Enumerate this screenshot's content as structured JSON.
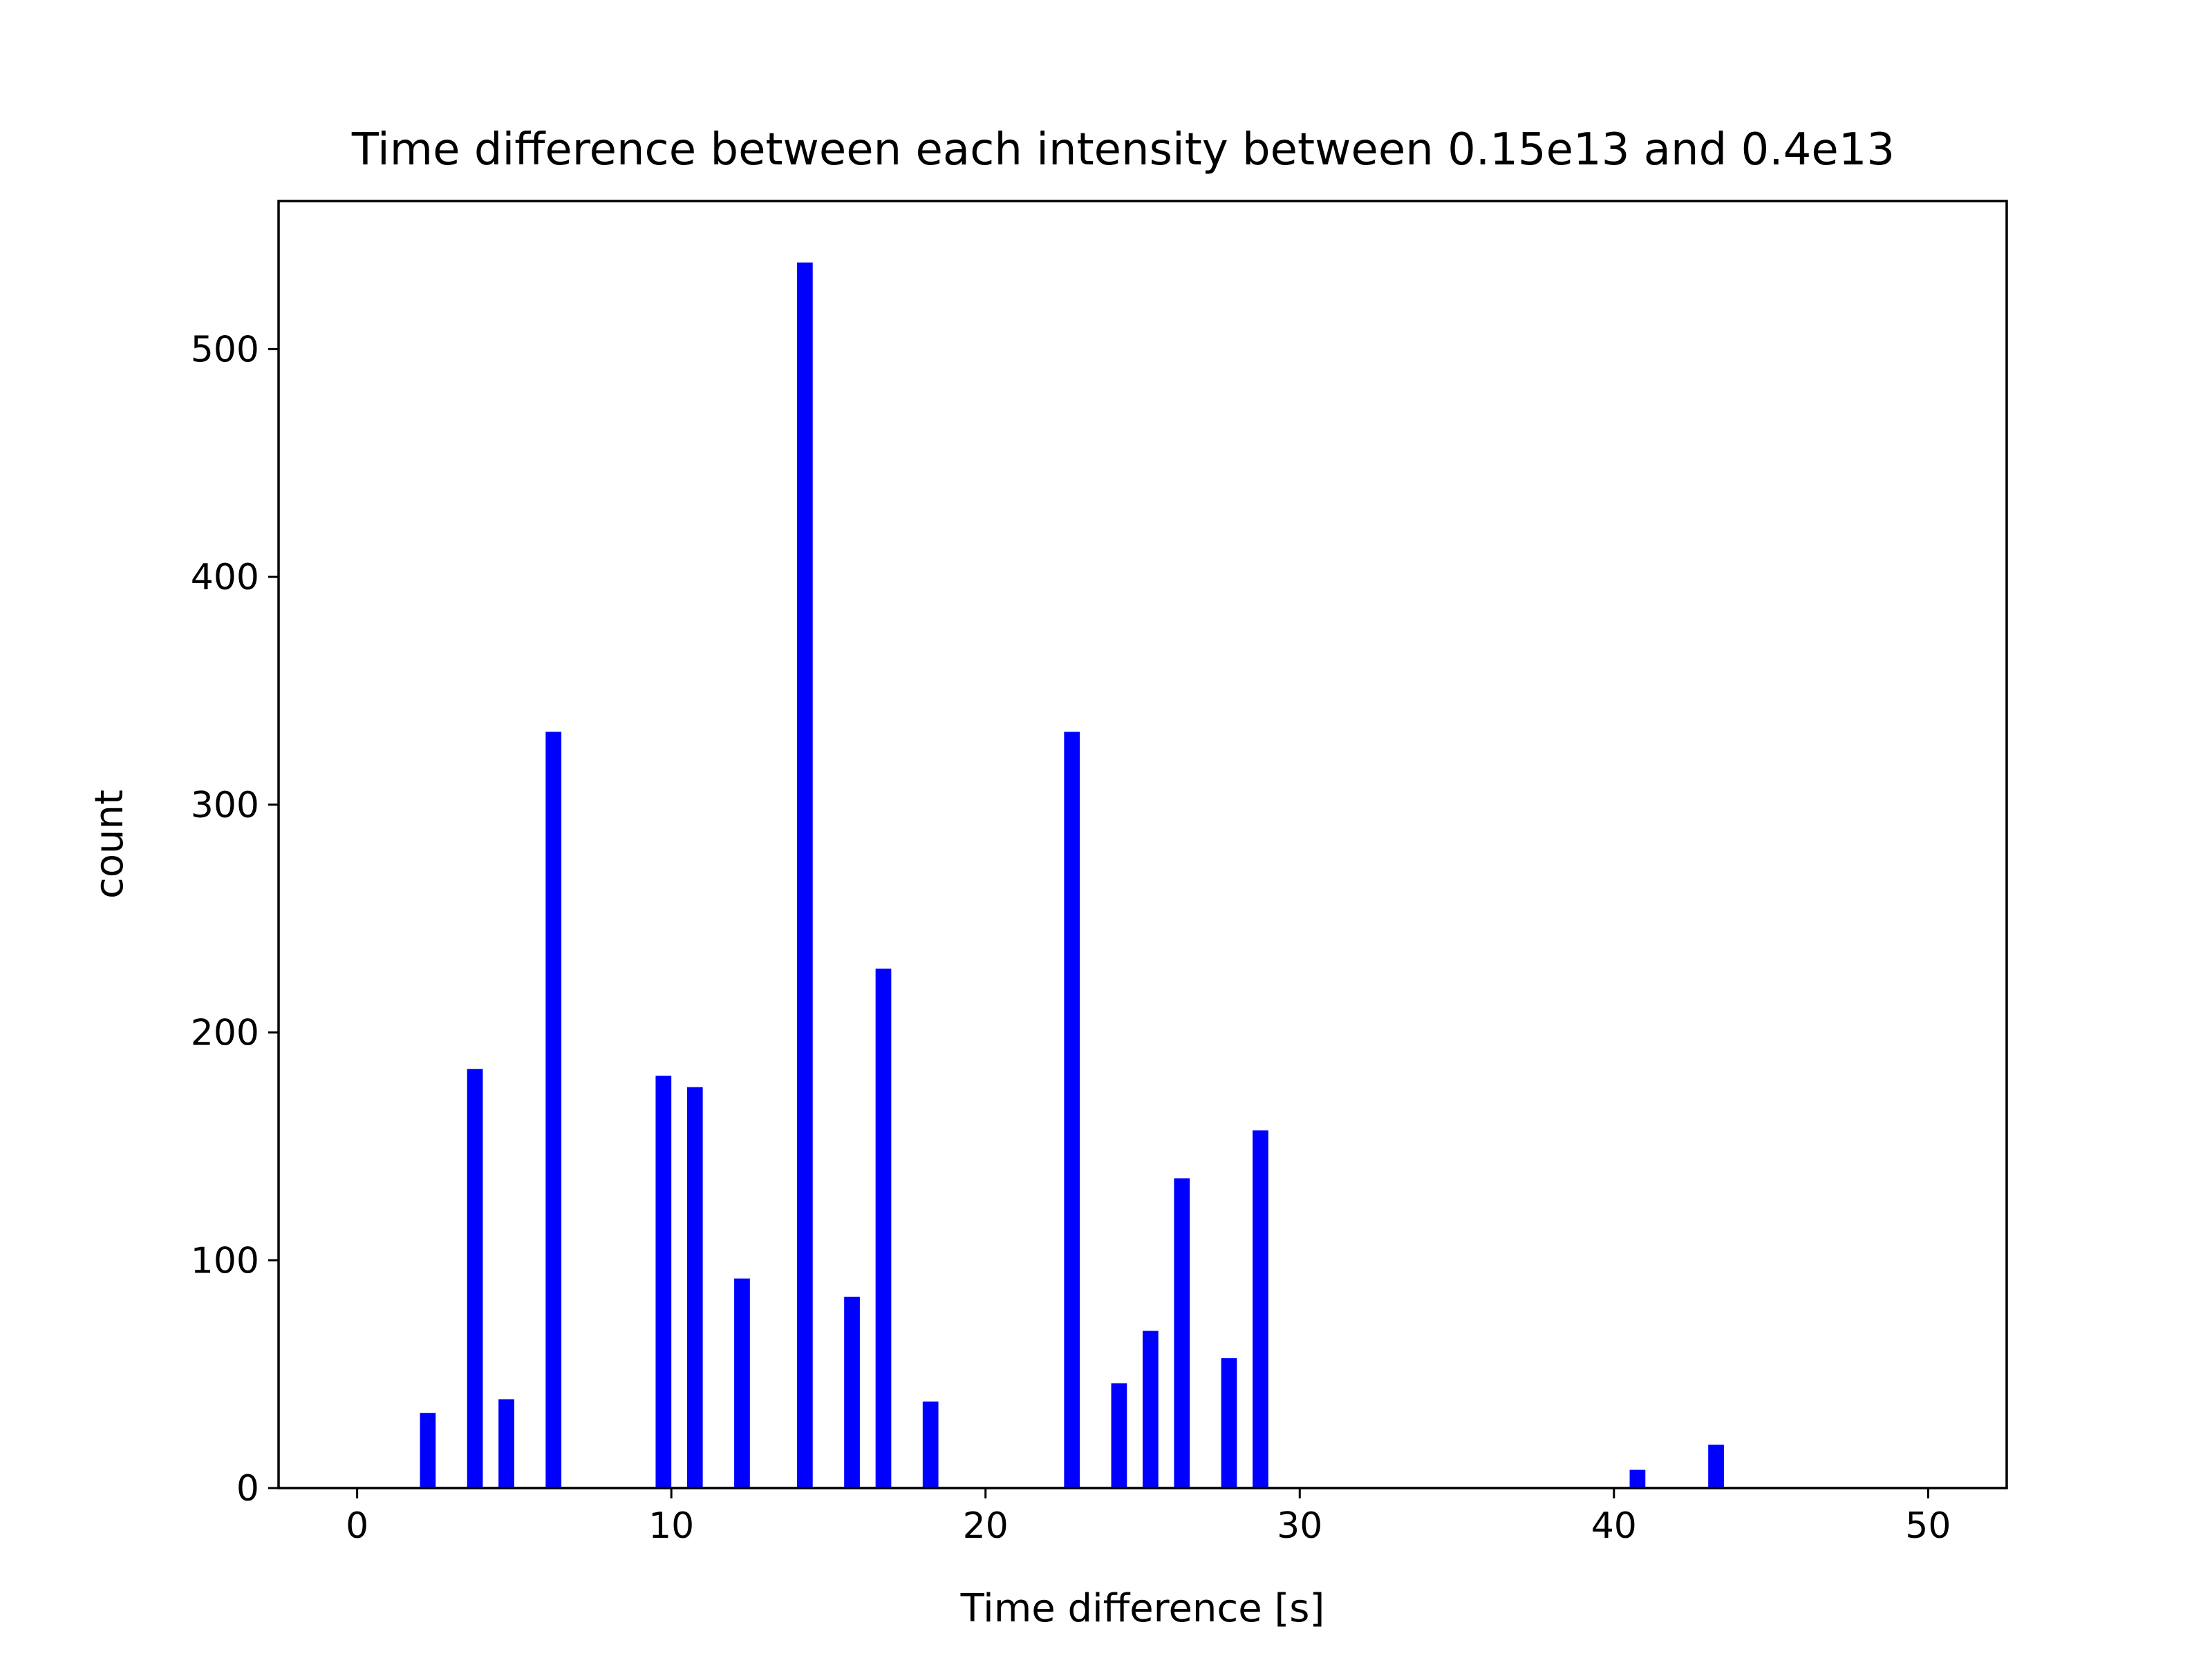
{
  "chart_data": {
    "type": "bar",
    "title": "Time difference between each intensity between 0.15e13 and 0.4e13",
    "xlabel": "Time difference [s]",
    "ylabel": "count",
    "xlim": [
      -2.5,
      52.5
    ],
    "ylim": [
      0,
      565
    ],
    "x_ticks": [
      0,
      10,
      20,
      30,
      40,
      50
    ],
    "y_ticks": [
      0,
      100,
      200,
      300,
      400,
      500
    ],
    "bar_width": 0.5,
    "bar_color": "#0000ff",
    "grid": false,
    "legend": "none",
    "x": [
      2.25,
      3.75,
      4.75,
      6.25,
      9.75,
      10.75,
      12.25,
      14.25,
      15.75,
      16.75,
      18.25,
      22.75,
      24.25,
      25.25,
      26.25,
      27.75,
      28.75,
      40.75,
      43.25
    ],
    "values": [
      33,
      184,
      39,
      332,
      181,
      176,
      92,
      538,
      84,
      228,
      38,
      332,
      46,
      69,
      136,
      57,
      157,
      8,
      19
    ]
  }
}
